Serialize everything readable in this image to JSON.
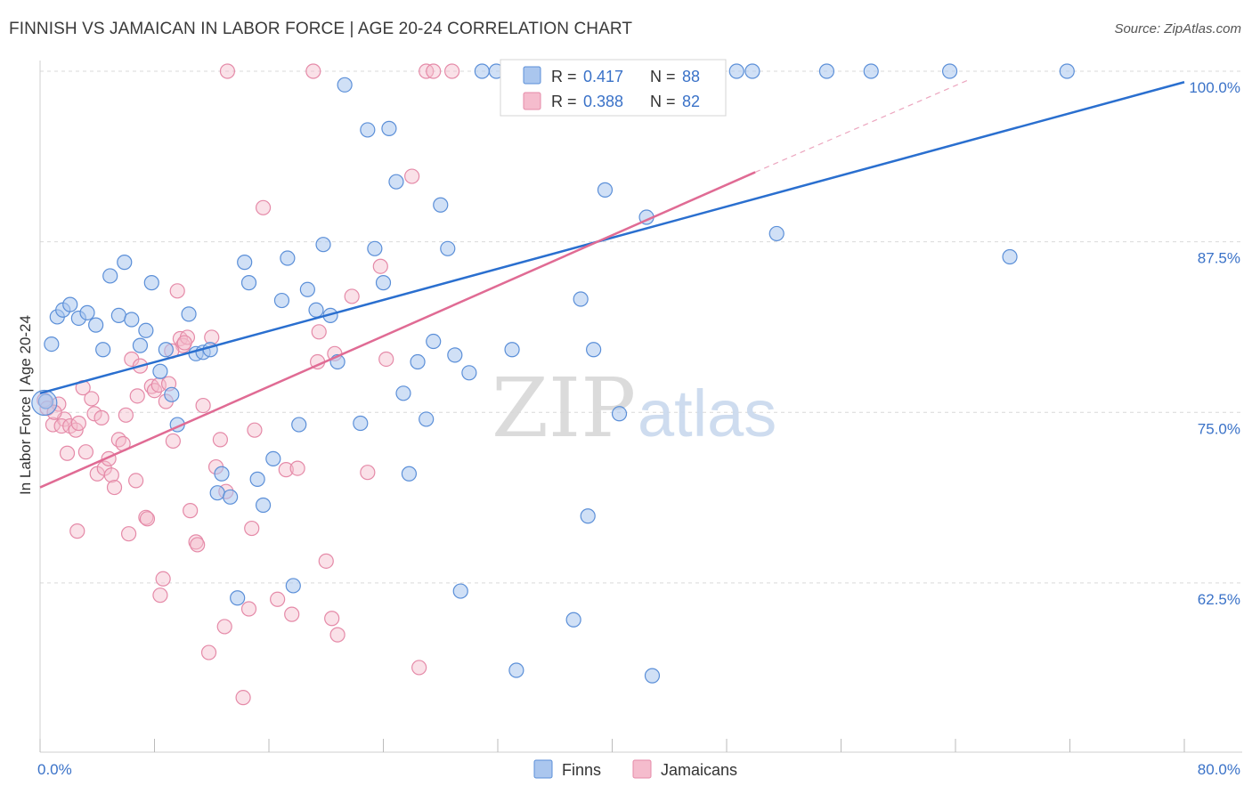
{
  "title": "FINNISH VS JAMAICAN IN LABOR FORCE | AGE 20-24 CORRELATION CHART",
  "source": "Source: ZipAtlas.com",
  "watermark": {
    "part1": "ZIP",
    "part2": "atlas"
  },
  "colors": {
    "finns_fill": "#aac6ee",
    "finns_stroke": "#5b8fd8",
    "finns_line": "#2a6fcf",
    "jamaicans_fill": "#f5bccd",
    "jamaicans_stroke": "#e58aa8",
    "jamaicans_line": "#e06b94",
    "tick_label": "#3a72c8",
    "grid": "#d9d9d9"
  },
  "legend_top": {
    "finns": {
      "r_label": "R =",
      "r_value": "0.417",
      "n_label": "N =",
      "n_value": "88"
    },
    "jamaicans": {
      "r_label": "R =",
      "r_value": "0.388",
      "n_label": "N =",
      "n_value": "82"
    }
  },
  "legend_bottom": {
    "finns": "Finns",
    "jamaicans": "Jamaicans"
  },
  "chart_data": {
    "type": "scatter",
    "title": "FINNISH VS JAMAICAN IN LABOR FORCE | AGE 20-24 CORRELATION CHART",
    "xlabel": "",
    "ylabel": "In Labor Force | Age 20-24",
    "xlim": [
      0,
      80
    ],
    "ylim": [
      49.5,
      101.5
    ],
    "x_tick_labels": [
      {
        "value": 0,
        "label": "0.0%"
      },
      {
        "value": 80,
        "label": "80.0%"
      }
    ],
    "y_tick_labels": [
      {
        "value": 100,
        "label": "100.0%"
      },
      {
        "value": 87.5,
        "label": "87.5%"
      },
      {
        "value": 75,
        "label": "75.0%"
      },
      {
        "value": 62.5,
        "label": "62.5%"
      }
    ],
    "grid": true,
    "legend_placement": "top-center",
    "series": [
      {
        "name": "Finns",
        "r": 0.417,
        "n": 88,
        "trendline": {
          "x": [
            0,
            80
          ],
          "y": [
            76.4,
            99.2
          ]
        },
        "points": [
          [
            0.4,
            75.8
          ],
          [
            0.8,
            80.0
          ],
          [
            1.2,
            82.0
          ],
          [
            1.6,
            82.5
          ],
          [
            2.1,
            82.9
          ],
          [
            2.7,
            81.9
          ],
          [
            3.3,
            82.3
          ],
          [
            3.9,
            81.4
          ],
          [
            4.4,
            79.6
          ],
          [
            4.9,
            85.0
          ],
          [
            5.5,
            82.1
          ],
          [
            5.9,
            86.0
          ],
          [
            6.4,
            81.8
          ],
          [
            7.0,
            79.9
          ],
          [
            7.4,
            81.0
          ],
          [
            7.8,
            84.5
          ],
          [
            8.4,
            78.0
          ],
          [
            8.8,
            79.6
          ],
          [
            9.2,
            76.3
          ],
          [
            9.6,
            74.1
          ],
          [
            10.4,
            82.2
          ],
          [
            10.9,
            79.3
          ],
          [
            11.4,
            79.4
          ],
          [
            11.9,
            79.6
          ],
          [
            12.4,
            69.1
          ],
          [
            12.7,
            70.5
          ],
          [
            13.3,
            68.8
          ],
          [
            13.8,
            61.4
          ],
          [
            14.3,
            86.0
          ],
          [
            14.6,
            84.5
          ],
          [
            15.2,
            70.1
          ],
          [
            15.6,
            68.2
          ],
          [
            16.3,
            71.6
          ],
          [
            16.9,
            83.2
          ],
          [
            17.3,
            86.3
          ],
          [
            17.7,
            62.3
          ],
          [
            18.1,
            74.1
          ],
          [
            18.7,
            84.0
          ],
          [
            19.3,
            82.5
          ],
          [
            19.8,
            87.3
          ],
          [
            20.3,
            82.1
          ],
          [
            20.8,
            78.7
          ],
          [
            21.3,
            99.0
          ],
          [
            22.4,
            74.2
          ],
          [
            22.9,
            95.7
          ],
          [
            23.4,
            87.0
          ],
          [
            24.0,
            84.5
          ],
          [
            24.4,
            95.8
          ],
          [
            24.9,
            91.9
          ],
          [
            25.4,
            76.4
          ],
          [
            25.8,
            70.5
          ],
          [
            26.4,
            78.7
          ],
          [
            27.0,
            74.5
          ],
          [
            27.5,
            80.2
          ],
          [
            28.0,
            90.2
          ],
          [
            28.5,
            87.0
          ],
          [
            29.0,
            79.2
          ],
          [
            29.4,
            61.9
          ],
          [
            30.0,
            77.9
          ],
          [
            30.9,
            100.0
          ],
          [
            31.9,
            100.0
          ],
          [
            33.0,
            79.6
          ],
          [
            33.3,
            56.1
          ],
          [
            34.5,
            100.0
          ],
          [
            35.4,
            100.0
          ],
          [
            36.3,
            100.0
          ],
          [
            37.3,
            59.8
          ],
          [
            37.8,
            83.3
          ],
          [
            38.3,
            67.4
          ],
          [
            38.7,
            79.6
          ],
          [
            39.5,
            91.3
          ],
          [
            40.5,
            74.9
          ],
          [
            42.4,
            89.3
          ],
          [
            42.8,
            55.7
          ],
          [
            44.1,
            100.0
          ],
          [
            47.0,
            100.0
          ],
          [
            48.7,
            100.0
          ],
          [
            49.8,
            100.0
          ],
          [
            51.5,
            88.1
          ],
          [
            55.0,
            100.0
          ],
          [
            58.1,
            100.0
          ],
          [
            63.6,
            100.0
          ],
          [
            67.8,
            86.4
          ],
          [
            71.8,
            100.0
          ],
          [
            37.0,
            100.0
          ],
          [
            39.0,
            100.0
          ],
          [
            40.5,
            100.0
          ],
          [
            46.0,
            100.0
          ]
        ]
      },
      {
        "name": "Jamaicans",
        "r": 0.388,
        "n": 82,
        "trendline": {
          "x": [
            0,
            50
          ],
          "y": [
            69.5,
            92.6
          ]
        },
        "trendline_dashed_extension": {
          "x": [
            50,
            65
          ],
          "y": [
            92.6,
            99.4
          ]
        },
        "points": [
          [
            0.3,
            75.9
          ],
          [
            0.5,
            75.3
          ],
          [
            0.9,
            74.1
          ],
          [
            1.3,
            75.6
          ],
          [
            1.7,
            74.5
          ],
          [
            1.5,
            74.0
          ],
          [
            1.9,
            72.0
          ],
          [
            2.1,
            74.0
          ],
          [
            2.5,
            73.7
          ],
          [
            2.7,
            74.2
          ],
          [
            2.6,
            66.3
          ],
          [
            3.0,
            76.8
          ],
          [
            3.2,
            72.1
          ],
          [
            3.6,
            76.0
          ],
          [
            3.8,
            74.9
          ],
          [
            4.0,
            70.5
          ],
          [
            4.3,
            74.6
          ],
          [
            4.5,
            70.9
          ],
          [
            4.8,
            71.6
          ],
          [
            5.0,
            70.4
          ],
          [
            5.2,
            69.5
          ],
          [
            5.5,
            73.0
          ],
          [
            5.8,
            72.7
          ],
          [
            6.0,
            74.8
          ],
          [
            6.2,
            66.1
          ],
          [
            6.4,
            78.9
          ],
          [
            6.8,
            76.2
          ],
          [
            7.0,
            78.4
          ],
          [
            7.4,
            67.3
          ],
          [
            7.5,
            67.2
          ],
          [
            7.8,
            76.9
          ],
          [
            8.0,
            76.6
          ],
          [
            8.3,
            77.0
          ],
          [
            8.4,
            61.6
          ],
          [
            8.6,
            62.8
          ],
          [
            8.8,
            75.8
          ],
          [
            9.0,
            77.1
          ],
          [
            9.3,
            72.9
          ],
          [
            9.6,
            83.9
          ],
          [
            9.8,
            80.4
          ],
          [
            10.0,
            79.9
          ],
          [
            10.3,
            80.5
          ],
          [
            10.5,
            67.8
          ],
          [
            10.9,
            65.5
          ],
          [
            11.0,
            65.3
          ],
          [
            11.4,
            75.5
          ],
          [
            11.8,
            57.4
          ],
          [
            12.0,
            80.5
          ],
          [
            12.3,
            71.0
          ],
          [
            12.6,
            73.0
          ],
          [
            12.9,
            59.3
          ],
          [
            13.1,
            100.0
          ],
          [
            14.2,
            54.1
          ],
          [
            14.6,
            60.6
          ],
          [
            14.8,
            66.5
          ],
          [
            15.0,
            73.7
          ],
          [
            15.6,
            90.0
          ],
          [
            16.6,
            61.3
          ],
          [
            17.2,
            70.8
          ],
          [
            17.6,
            60.2
          ],
          [
            18.0,
            70.9
          ],
          [
            19.1,
            100.0
          ],
          [
            19.4,
            78.7
          ],
          [
            19.5,
            80.9
          ],
          [
            20.0,
            64.1
          ],
          [
            20.4,
            59.9
          ],
          [
            20.6,
            79.3
          ],
          [
            20.8,
            58.7
          ],
          [
            21.8,
            83.5
          ],
          [
            22.9,
            70.6
          ],
          [
            23.8,
            85.7
          ],
          [
            24.2,
            78.9
          ],
          [
            26.0,
            92.3
          ],
          [
            26.5,
            56.3
          ],
          [
            27.0,
            100.0
          ],
          [
            27.5,
            100.0
          ],
          [
            28.8,
            100.0
          ],
          [
            9.2,
            79.5
          ],
          [
            10.1,
            80.1
          ],
          [
            13.0,
            69.2
          ],
          [
            6.7,
            70.0
          ],
          [
            1.0,
            75.0
          ]
        ]
      }
    ]
  }
}
